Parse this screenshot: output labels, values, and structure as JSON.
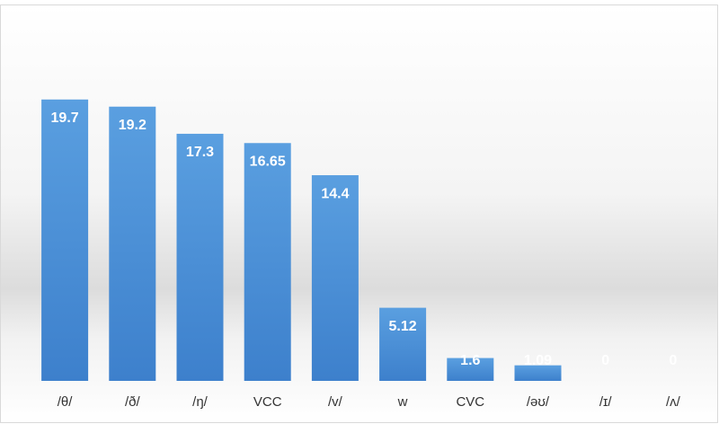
{
  "chart_data": {
    "type": "bar",
    "categories": [
      "/θ/",
      "/ð/",
      "/ŋ/",
      "VCC",
      "/v/",
      "w",
      "CVC",
      "/əʊ/",
      "/ɪ/",
      "/ʌ/"
    ],
    "values": [
      19.7,
      19.2,
      17.3,
      16.65,
      14.4,
      5.12,
      1.6,
      1.09,
      0,
      0
    ],
    "color": "#4a8fd6"
  }
}
